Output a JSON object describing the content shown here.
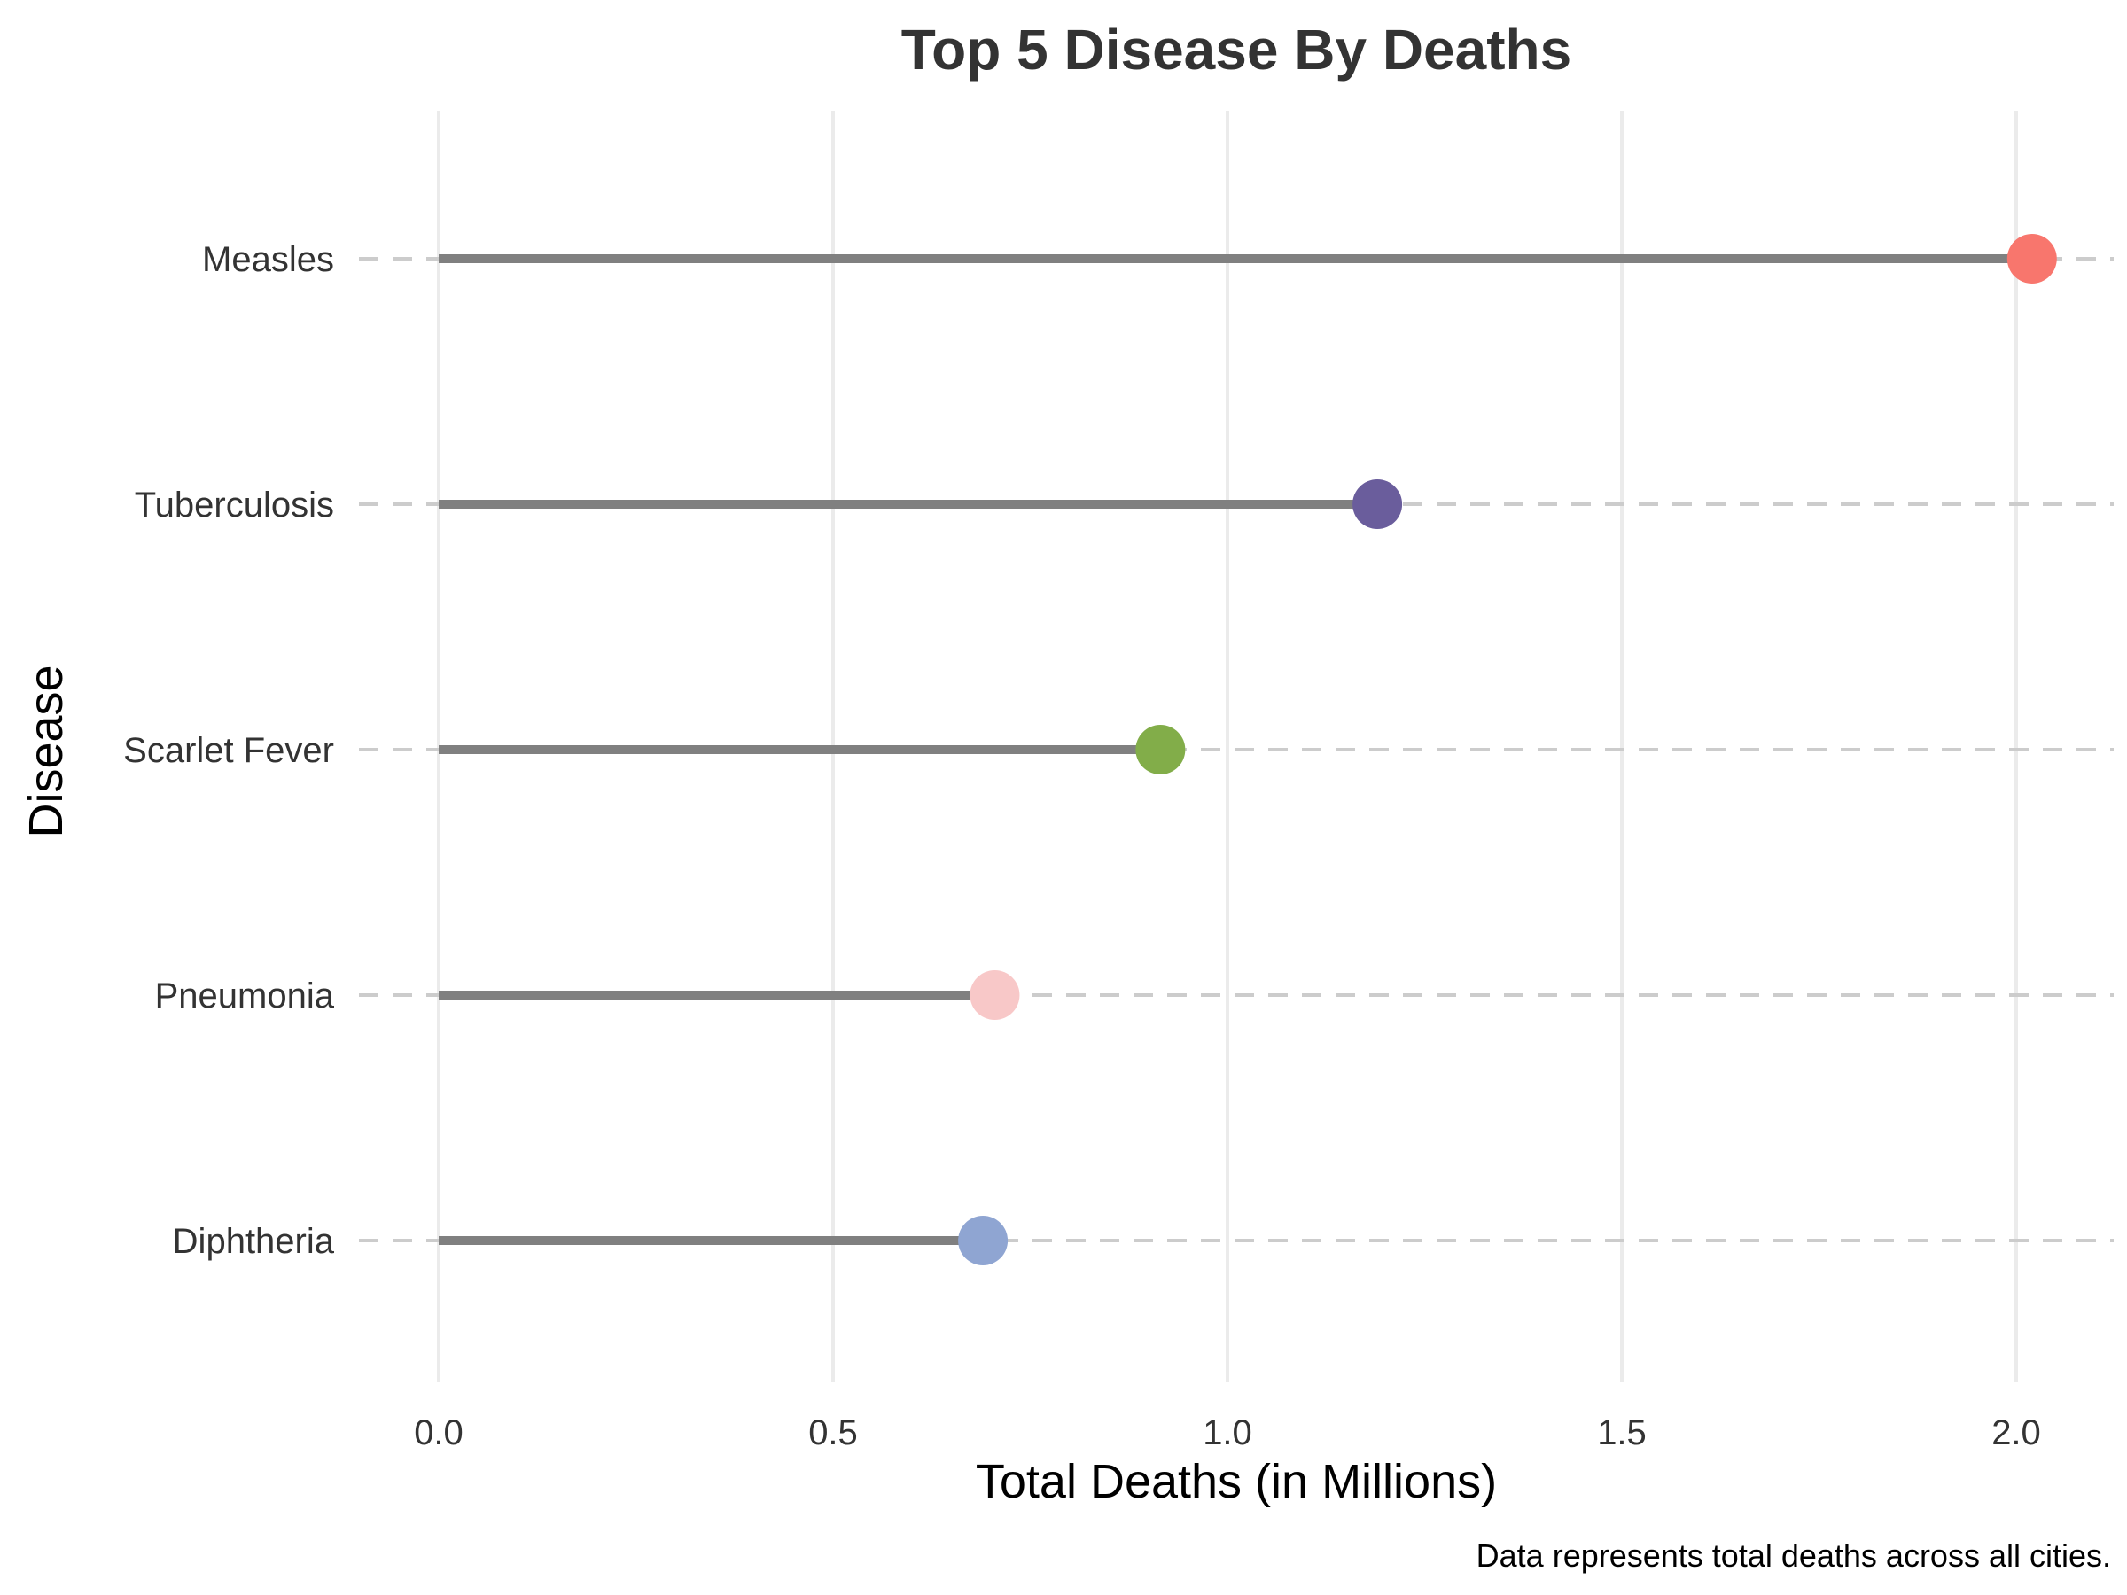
{
  "chart_data": {
    "type": "lollipop",
    "orientation": "horizontal",
    "title": "Top 5 Disease By Deaths",
    "xlabel": "Total Deaths (in Millions)",
    "ylabel": "Disease",
    "caption": "Data represents total deaths across all cities.",
    "xlim": [
      0,
      2.1
    ],
    "x_ticks": [
      0.0,
      0.5,
      1.0,
      1.5,
      2.0
    ],
    "x_tick_labels": [
      "0.0",
      "0.5",
      "1.0",
      "1.5",
      "2.0"
    ],
    "grid": {
      "vertical": true,
      "horizontal_dashed": true
    },
    "legend": "none",
    "categories": [
      "Measles",
      "Tuberculosis",
      "Scarlet Fever",
      "Pneumonia",
      "Diphtheria"
    ],
    "values": [
      2.02,
      1.19,
      0.915,
      0.705,
      0.69
    ],
    "colors": [
      "#F8766D",
      "#6A5D9C",
      "#82AD49",
      "#F8C8C8",
      "#8FA5D2"
    ],
    "stem_color": "#808080"
  }
}
